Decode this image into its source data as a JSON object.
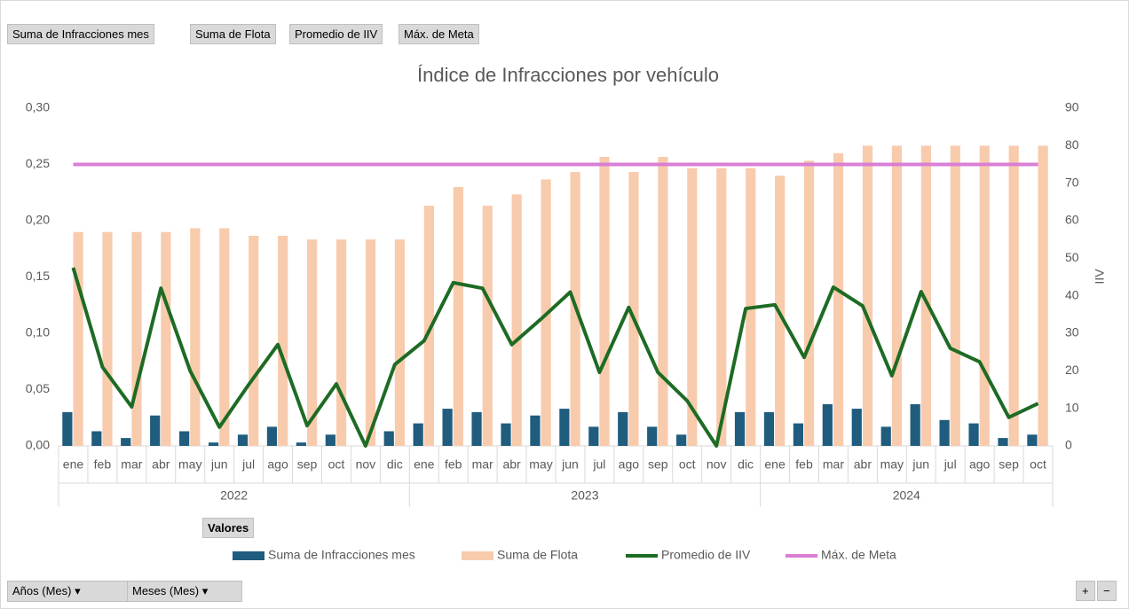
{
  "buttons": [
    "Suma de Infracciones mes",
    "Suma de Flota",
    "Promedio de IIV",
    "Máx. de Meta"
  ],
  "values_button": "Valores",
  "filters": [
    "Años (Mes)",
    "Meses (Mes)"
  ],
  "chart_data": {
    "type": "combo",
    "title": "Índice de Infracciones por vehículo",
    "y2_label": "IIV",
    "groups": [
      {
        "name": "2022",
        "categories": [
          "ene",
          "feb",
          "mar",
          "abr",
          "may",
          "jun",
          "jul",
          "ago",
          "sep",
          "oct",
          "nov",
          "dic"
        ]
      },
      {
        "name": "2023",
        "categories": [
          "ene",
          "feb",
          "mar",
          "abr",
          "may",
          "jun",
          "jul",
          "ago",
          "sep",
          "oct",
          "nov",
          "dic"
        ]
      },
      {
        "name": "2024",
        "categories": [
          "ene",
          "feb",
          "mar",
          "abr",
          "may",
          "jun",
          "jul",
          "ago",
          "sep",
          "oct"
        ]
      }
    ],
    "ylim": [
      0,
      0.3
    ],
    "yticks": [
      {
        "value": 0,
        "label": "0,00"
      },
      {
        "value": 0.05,
        "label": "0,05"
      },
      {
        "value": 0.1,
        "label": "0,10"
      },
      {
        "value": 0.15,
        "label": "0,15"
      },
      {
        "value": 0.2,
        "label": "0,20"
      },
      {
        "value": 0.25,
        "label": "0,25"
      },
      {
        "value": 0.3,
        "label": "0,30"
      }
    ],
    "y2lim": [
      0,
      90
    ],
    "y2ticks": [
      0,
      10,
      20,
      30,
      40,
      50,
      60,
      70,
      80,
      90
    ],
    "series": [
      {
        "name": "Suma de Infracciones mes",
        "kind": "bar",
        "color": "#1f5c7e",
        "axis": "y",
        "values": [
          0.03,
          0.013,
          0.007,
          0.027,
          0.013,
          0.003,
          0.01,
          0.017,
          0.003,
          0.01,
          0,
          0.013,
          0.02,
          0.033,
          0.03,
          0.02,
          0.027,
          0.033,
          0.017,
          0.03,
          0.017,
          0.01,
          0,
          0.03,
          0.03,
          0.02,
          0.037,
          0.033,
          0.017,
          0.037,
          0.023,
          0.02,
          0.007,
          0.01
        ]
      },
      {
        "name": "Suma de Flota",
        "kind": "bar",
        "color": "#f8cbad",
        "axis": "y2",
        "values": [
          57,
          57,
          57,
          57,
          58,
          58,
          56,
          56,
          55,
          55,
          55,
          55,
          64,
          69,
          64,
          67,
          71,
          73,
          77,
          73,
          77,
          74,
          74,
          74,
          72,
          76,
          78,
          80,
          80,
          80,
          80,
          80,
          80,
          80
        ]
      },
      {
        "name": "Promedio de IIV",
        "kind": "line",
        "color": "#1e6b24",
        "axis": "y2",
        "values": [
          47.5,
          21,
          10.4,
          42,
          20,
          5,
          16.3,
          27,
          5.4,
          16.5,
          0,
          21.7,
          28,
          43.5,
          42,
          27,
          33.8,
          41,
          19.6,
          36.9,
          19.6,
          12,
          0,
          36.6,
          37.6,
          23.6,
          42.3,
          37.3,
          18.7,
          41.1,
          26,
          22.4,
          7.6,
          11.3
        ]
      },
      {
        "name": "Máx. de Meta",
        "kind": "line",
        "color": "#d97fd6",
        "axis": "y",
        "values": [
          0.25,
          0.25,
          0.25,
          0.25,
          0.25,
          0.25,
          0.25,
          0.25,
          0.25,
          0.25,
          0.25,
          0.25,
          0.25,
          0.25,
          0.25,
          0.25,
          0.25,
          0.25,
          0.25,
          0.25,
          0.25,
          0.25,
          0.25,
          0.25,
          0.25,
          0.25,
          0.25,
          0.25,
          0.25,
          0.25,
          0.25,
          0.25,
          0.25,
          0.25
        ]
      }
    ]
  }
}
